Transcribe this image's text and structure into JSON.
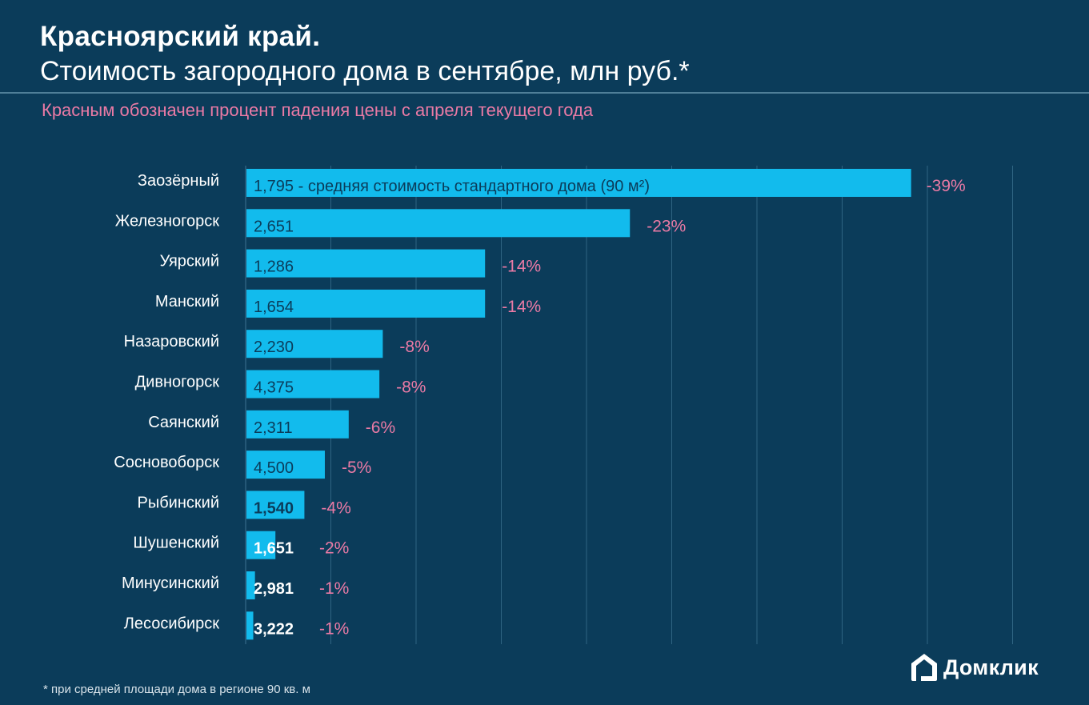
{
  "header": {
    "title": "Красноярский край.",
    "subtitle": "Стоимость загородного дома в сентябре, млн руб.*",
    "note": "Красным обозначен процент падения цены с апреля текущего года"
  },
  "footer": {
    "footnote": "* при средней площади дома в регионе 90 кв. м",
    "logo_text": "Домклик",
    "logo_icon": "house-icon"
  },
  "colors": {
    "background": "#0b3c5a",
    "bar": "#12bbed",
    "percent_label": "#ea7aa5",
    "gridline": "#2f6482",
    "value_label_dark": "#0b3c5a",
    "value_label_light": "#ffffff"
  },
  "chart_data": {
    "type": "bar",
    "orientation": "horizontal",
    "title": "Стоимость загородного дома в сентябре, млн руб.*",
    "xlabel": "",
    "ylabel": "",
    "bar_measure": "процент падения цены с апреля (%)",
    "xlim": [
      0,
      45
    ],
    "grid": true,
    "grid_step": 5,
    "categories": [
      "Заозёрный",
      "Железногорск",
      "Уярский",
      "Манский",
      "Назаровский",
      "Дивногорск",
      "Саянский",
      "Сосновоборск",
      "Рыбинский",
      "Шушенский",
      "Минусинский",
      "Лесосибирск"
    ],
    "price_labels": [
      "1,795 - средняя стоимость стандартного дома (90 м²)",
      "2,651",
      "1,286",
      "1,654",
      "2,230",
      "4,375",
      "2,311",
      "4,500",
      "1,540",
      "1,651",
      "2,981",
      "3,222"
    ],
    "prices_mln_rub": [
      1.795,
      2.651,
      1.286,
      1.654,
      2.23,
      4.375,
      2.311,
      4.5,
      1.54,
      1.651,
      2.981,
      3.222
    ],
    "decline_percent": [
      39,
      22.5,
      14,
      14,
      8,
      7.8,
      6,
      4.6,
      3.4,
      1.7,
      0.5,
      0.4
    ],
    "decline_labels": [
      "-39%",
      "-23%",
      "-14%",
      "-14%",
      "-8%",
      "-8%",
      "-6%",
      "-5%",
      "-4%",
      "-2%",
      "-1%",
      "-1%"
    ]
  }
}
